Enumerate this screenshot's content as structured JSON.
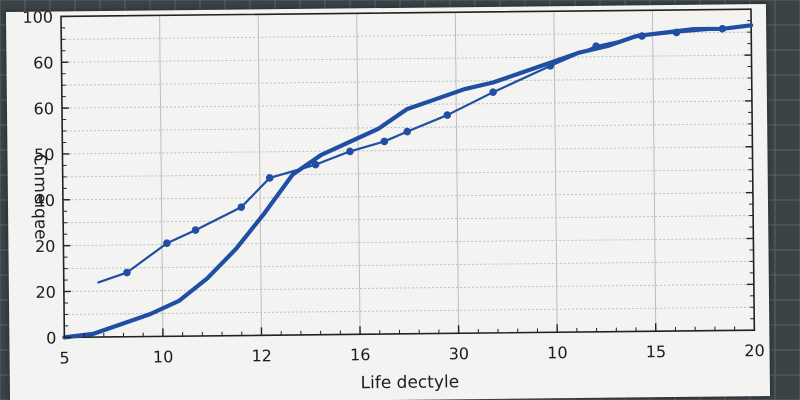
{
  "colors": {
    "series": "#1f4ea3",
    "background": "#3b4347",
    "paper": "#f3f3f1",
    "grid": "#bdbdbd"
  },
  "chart_data": {
    "type": "line",
    "title": "",
    "xlabel": "Life dectyle",
    "ylabel": "Cnmeıqɐe",
    "x_tick_labels": [
      "5",
      "10",
      "12",
      "16",
      "30",
      "10",
      "15",
      "20"
    ],
    "y_tick_labels": [
      "0",
      "20",
      "20",
      "40",
      "50",
      "60",
      "60",
      "100"
    ],
    "grid": true,
    "legend": "none",
    "series": [
      {
        "marker": "circle",
        "x": [
          0.6,
          1.1,
          1.8,
          2.3,
          3.1,
          3.6,
          4.4,
          5.0,
          5.6,
          6.0,
          6.7,
          7.5,
          8.5,
          9.3,
          10.1,
          10.7,
          11.5,
          11.9
        ],
        "y": [
          17,
          20,
          29,
          33,
          40,
          49,
          53,
          57,
          60,
          63,
          68,
          75,
          83,
          89,
          92,
          93,
          94,
          95
        ]
      },
      {
        "marker": "none",
        "x": [
          0.0,
          0.5,
          1.0,
          1.5,
          2.0,
          2.5,
          3.0,
          3.5,
          4.0,
          4.5,
          5.0,
          5.5,
          6.0,
          6.5,
          7.0,
          7.5,
          8.0,
          8.5,
          9.0,
          9.5,
          10.0,
          10.5,
          11.0,
          11.5,
          12.0
        ],
        "y": [
          0,
          1,
          4,
          7,
          11,
          18,
          27,
          38,
          50,
          56,
          60,
          64,
          70,
          73,
          76,
          78,
          81,
          84,
          87,
          89,
          92,
          93,
          94,
          94,
          95
        ]
      }
    ]
  }
}
